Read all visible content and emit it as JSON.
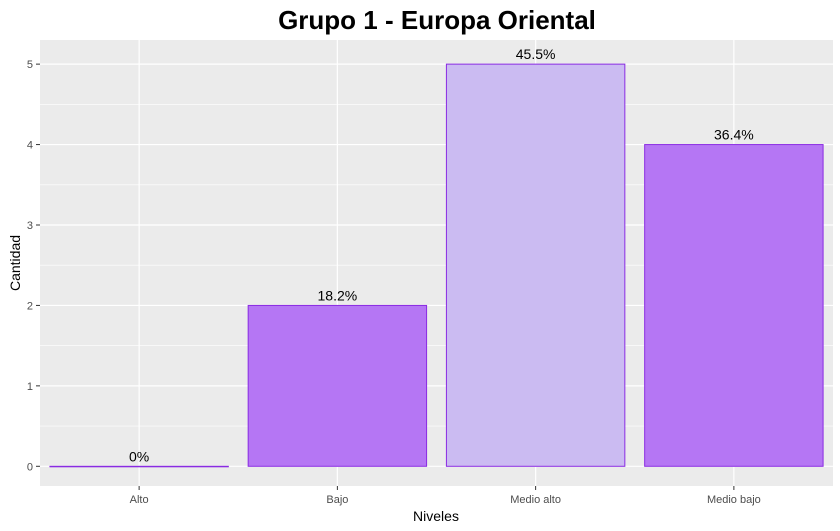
{
  "chart_data": {
    "type": "bar",
    "title": "Grupo 1 - Europa Oriental",
    "xlabel": "Niveles",
    "ylabel": "Cantidad",
    "categories": [
      "Alto",
      "Bajo",
      "Medio alto",
      "Medio bajo"
    ],
    "values": [
      0,
      2,
      5,
      4
    ],
    "data_labels": [
      "0%",
      "18.2%",
      "45.5%",
      "36.4%"
    ],
    "y_ticks": [
      "0",
      "1",
      "2",
      "3",
      "4",
      "5"
    ],
    "ylim": [
      0,
      5.3
    ],
    "grid": true,
    "legend": "none",
    "colors": {
      "panel_bg": "#ebebeb",
      "grid_major": "#ffffff",
      "bar_outline": "#8a2be2",
      "bars": [
        "#b576f4",
        "#b576f4",
        "#cbbbf2",
        "#b576f4"
      ]
    }
  }
}
